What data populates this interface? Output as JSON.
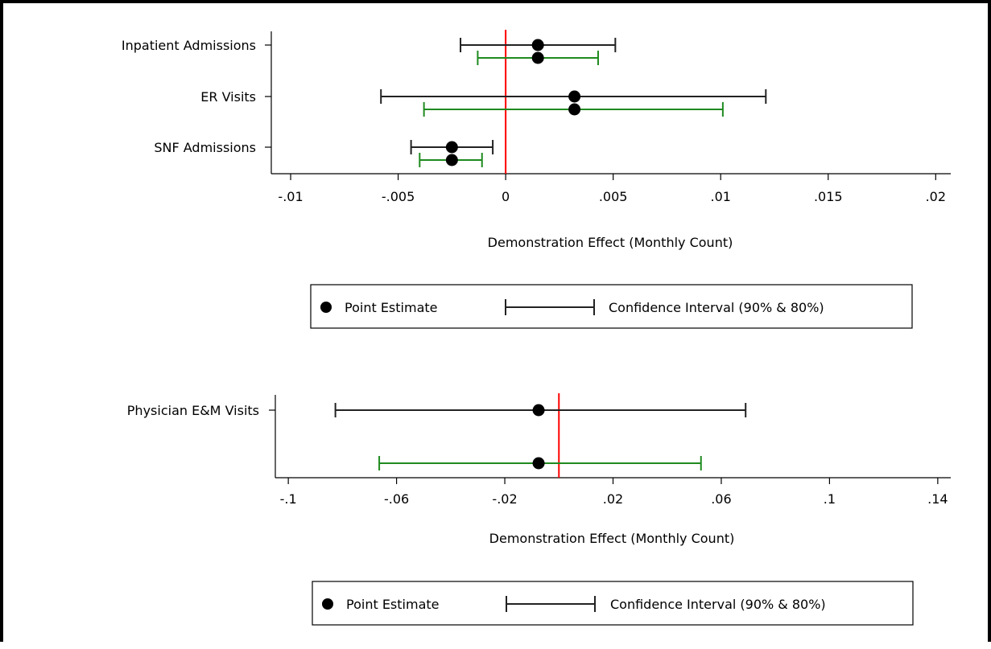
{
  "chart_data": [
    {
      "type": "errorbar",
      "xlabel": "Demonstration Effect (Monthly Count)",
      "xticks": [
        "-.01",
        "-.005",
        "0",
        ".005",
        ".01",
        ".015",
        ".02"
      ],
      "xtick_values": [
        -0.01,
        -0.005,
        0,
        0.005,
        0.01,
        0.015,
        0.02
      ],
      "xlim": [
        -0.0109,
        0.0207
      ],
      "reference_line": {
        "x": 0,
        "color": "#ff0000"
      },
      "colors": {
        "ci90": "#222222",
        "ci80": "#1f8a1f",
        "point": "#000000"
      },
      "categories": [
        "Inpatient Admissions",
        "ER Visits",
        "SNF Admissions"
      ],
      "rows": [
        {
          "category": "Inpatient Admissions",
          "estimate": 0.0015,
          "ci90": [
            -0.0021,
            0.0051
          ],
          "ci80": [
            -0.0013,
            0.0043
          ]
        },
        {
          "category": "ER Visits",
          "estimate": 0.0032,
          "ci90": [
            -0.0058,
            0.0121
          ],
          "ci80": [
            -0.0038,
            0.0101
          ]
        },
        {
          "category": "SNF Admissions",
          "estimate": -0.0025,
          "ci90": [
            -0.0044,
            -0.0006
          ],
          "ci80": [
            -0.004,
            -0.0011
          ]
        }
      ],
      "legend": {
        "point_label": "Point Estimate",
        "ci_label": "Confidence Interval (90% & 80%)"
      }
    },
    {
      "type": "errorbar",
      "xlabel": "Demonstration Effect (Monthly Count)",
      "xticks": [
        "-.1",
        "-.06",
        "-.02",
        ".02",
        ".06",
        ".1",
        ".14"
      ],
      "xtick_values": [
        -0.1,
        -0.06,
        -0.02,
        0.02,
        0.06,
        0.1,
        0.14
      ],
      "xlim": [
        -0.1048,
        0.1448
      ],
      "reference_line": {
        "x": 0,
        "color": "#ff0000"
      },
      "colors": {
        "ci90": "#222222",
        "ci80": "#1f8a1f",
        "point": "#000000"
      },
      "categories": [
        "Physician E&M Visits"
      ],
      "rows": [
        {
          "category": "Physician E&M Visits",
          "estimate": -0.0075,
          "ci90": [
            -0.0826,
            0.069
          ],
          "ci80": [
            -0.0664,
            0.0525
          ]
        }
      ],
      "legend": {
        "point_label": "Point Estimate",
        "ci_label": "Confidence Interval (90% & 80%)"
      }
    }
  ]
}
